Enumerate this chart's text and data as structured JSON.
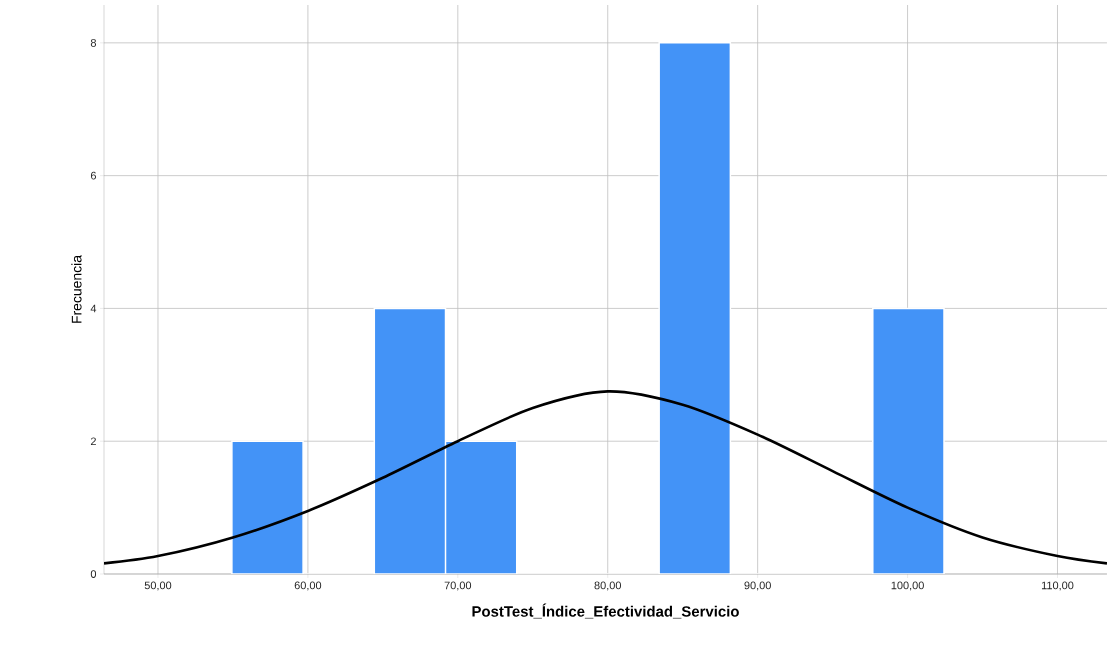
{
  "chart_data": {
    "type": "histogram",
    "xlabel": "PostTest_Índice_Efectividad_Servicio",
    "ylabel": "Frecuencia",
    "bins": [
      54.93,
      59.68,
      64.43,
      69.18,
      73.93,
      78.68,
      83.43,
      88.18,
      92.93,
      97.68,
      102.43
    ],
    "values": [
      2,
      0,
      4,
      2,
      0,
      0,
      8,
      0,
      0,
      4
    ],
    "color": "#4393f7",
    "series": [
      {
        "type": "line",
        "color": "#000000",
        "x": [
          46.4,
          50,
          55,
          60,
          65,
          70,
          75,
          80,
          85,
          90,
          95,
          100,
          105,
          110,
          113.3
        ],
        "values": [
          0.16,
          0.27,
          0.55,
          0.95,
          1.45,
          2.0,
          2.5,
          2.75,
          2.55,
          2.1,
          1.55,
          1.0,
          0.55,
          0.27,
          0.16
        ]
      }
    ],
    "xlim": [
      46.4,
      113.3
    ],
    "ylim": [
      0,
      8.57
    ],
    "xticks": [
      {
        "value": 50,
        "label": "50,00"
      },
      {
        "value": 60,
        "label": "60,00"
      },
      {
        "value": 70,
        "label": "70,00"
      },
      {
        "value": 80,
        "label": "80,00"
      },
      {
        "value": 90,
        "label": "90,00"
      },
      {
        "value": 100,
        "label": "100,00"
      },
      {
        "value": 110,
        "label": "110,00"
      }
    ],
    "yticks": [
      0,
      2,
      4,
      6,
      8
    ],
    "grid": true
  }
}
